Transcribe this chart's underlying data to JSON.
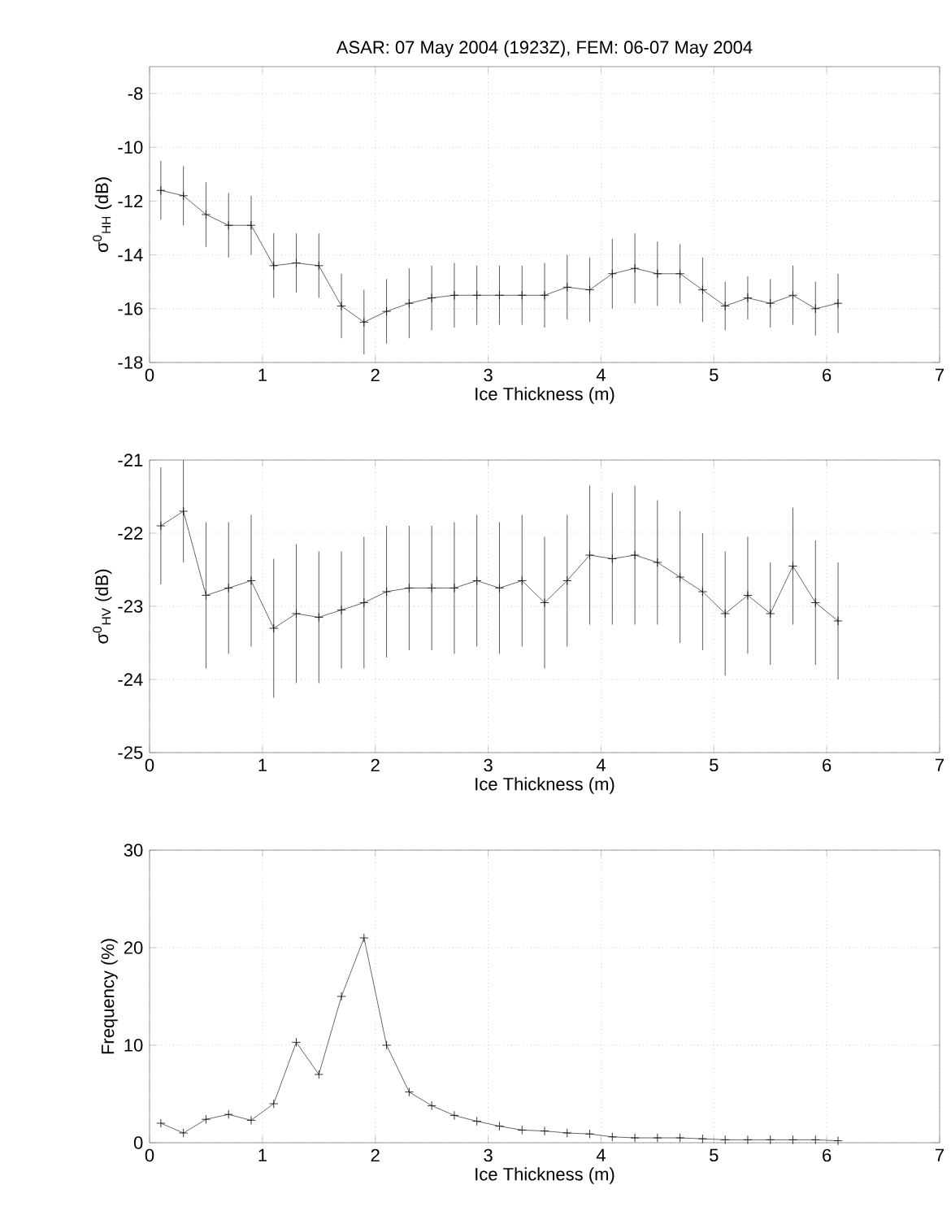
{
  "chart_data": [
    {
      "type": "line",
      "title": "ASAR: 07 May 2004 (1923Z), FEM: 06-07 May 2004",
      "xlabel": "Ice Thickness (m)",
      "ylabel": "σ$^{0}$$_{HH}$ (dB)",
      "color": "#404040",
      "marker": "cross",
      "grid": true,
      "x": [
        0.1,
        0.3,
        0.5,
        0.7,
        0.9,
        1.1,
        1.3,
        1.5,
        1.7,
        1.9,
        2.1,
        2.3,
        2.5,
        2.7,
        2.9,
        3.1,
        3.3,
        3.5,
        3.7,
        3.9,
        4.1,
        4.3,
        4.5,
        4.7,
        4.9,
        5.1,
        5.3,
        5.5,
        5.7,
        5.9,
        6.1
      ],
      "values": [
        -11.6,
        -11.8,
        -12.5,
        -12.9,
        -12.9,
        -14.4,
        -14.3,
        -14.4,
        -15.9,
        -16.5,
        -16.1,
        -15.8,
        -15.6,
        -15.5,
        -15.5,
        -15.5,
        -15.5,
        -15.5,
        -15.2,
        -15.3,
        -14.7,
        -14.5,
        -14.7,
        -14.7,
        -15.3,
        -15.9,
        -15.6,
        -15.8,
        -15.5,
        -16.0,
        -15.8
      ],
      "errors": [
        1.1,
        1.1,
        1.2,
        1.2,
        1.1,
        1.2,
        1.1,
        1.2,
        1.2,
        1.2,
        1.2,
        1.3,
        1.2,
        1.2,
        1.1,
        1.1,
        1.1,
        1.2,
        1.2,
        1.2,
        1.3,
        1.3,
        1.2,
        1.1,
        1.2,
        0.9,
        0.8,
        0.9,
        1.1,
        1.0,
        1.1
      ],
      "xlim": [
        0,
        7
      ],
      "xticks": [
        0,
        1,
        2,
        3,
        4,
        5,
        6,
        7
      ],
      "ylim": [
        -18,
        -7
      ],
      "yticks": [
        -18,
        -16,
        -14,
        -12,
        -10,
        -8
      ]
    },
    {
      "type": "line",
      "xlabel": "Ice Thickness (m)",
      "ylabel": "σ$^{0}$$_{HV}$ (dB)",
      "color": "#404040",
      "marker": "cross",
      "grid": true,
      "x": [
        0.1,
        0.3,
        0.5,
        0.7,
        0.9,
        1.1,
        1.3,
        1.5,
        1.7,
        1.9,
        2.1,
        2.3,
        2.5,
        2.7,
        2.9,
        3.1,
        3.3,
        3.5,
        3.7,
        3.9,
        4.1,
        4.3,
        4.5,
        4.7,
        4.9,
        5.1,
        5.3,
        5.5,
        5.7,
        5.9,
        6.1
      ],
      "values": [
        -21.9,
        -21.7,
        -22.85,
        -22.75,
        -22.65,
        -23.3,
        -23.1,
        -23.15,
        -23.05,
        -22.95,
        -22.8,
        -22.75,
        -22.75,
        -22.75,
        -22.65,
        -22.75,
        -22.65,
        -22.95,
        -22.65,
        -22.3,
        -22.35,
        -22.3,
        -22.4,
        -22.6,
        -22.8,
        -23.1,
        -22.85,
        -23.1,
        -22.45,
        -22.95,
        -23.2
      ],
      "errors": [
        0.8,
        0.7,
        1.0,
        0.9,
        0.9,
        0.95,
        0.95,
        0.9,
        0.8,
        0.9,
        0.9,
        0.85,
        0.85,
        0.9,
        0.9,
        0.9,
        0.9,
        0.9,
        0.9,
        0.95,
        0.9,
        0.95,
        0.85,
        0.9,
        0.8,
        0.85,
        0.8,
        0.7,
        0.8,
        0.85,
        0.8
      ],
      "xlim": [
        0,
        7
      ],
      "xticks": [
        0,
        1,
        2,
        3,
        4,
        5,
        6,
        7
      ],
      "ylim": [
        -25,
        -21
      ],
      "yticks": [
        -25,
        -24,
        -23,
        -22,
        -21
      ]
    },
    {
      "type": "line",
      "xlabel": "Ice Thickness (m)",
      "ylabel": "Frequency (%)",
      "color": "#404040",
      "marker": "cross",
      "grid": true,
      "x": [
        0.1,
        0.3,
        0.5,
        0.7,
        0.9,
        1.1,
        1.3,
        1.5,
        1.7,
        1.9,
        2.1,
        2.3,
        2.5,
        2.7,
        2.9,
        3.1,
        3.3,
        3.5,
        3.7,
        3.9,
        4.1,
        4.3,
        4.5,
        4.7,
        4.9,
        5.1,
        5.3,
        5.5,
        5.7,
        5.9,
        6.1
      ],
      "values": [
        2.0,
        1.0,
        2.4,
        2.9,
        2.3,
        4.0,
        10.3,
        7.0,
        15,
        21,
        10,
        5.2,
        3.8,
        2.8,
        2.2,
        1.7,
        1.3,
        1.2,
        1.0,
        0.9,
        0.6,
        0.5,
        0.5,
        0.5,
        0.4,
        0.3,
        0.3,
        0.3,
        0.3,
        0.3,
        0.2
      ],
      "xlim": [
        0,
        7
      ],
      "xticks": [
        0,
        1,
        2,
        3,
        4,
        5,
        6,
        7
      ],
      "ylim": [
        0,
        30
      ],
      "yticks": [
        0,
        10,
        20,
        30
      ]
    }
  ]
}
